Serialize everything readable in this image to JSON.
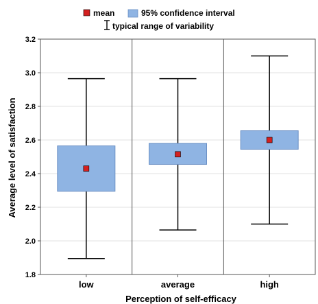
{
  "chart_data": {
    "type": "box",
    "title": "",
    "xlabel": "Perception of self-efficacy",
    "ylabel": "Average level of satisfaction",
    "ylim": [
      1.8,
      3.2
    ],
    "yticks": [
      "1.8",
      "2.0",
      "2.2",
      "2.4",
      "2.6",
      "2.8",
      "3.0",
      "3.2"
    ],
    "categories": [
      "low",
      "average",
      "high"
    ],
    "mean": [
      2.43,
      2.515,
      2.6
    ],
    "ci_low": [
      2.295,
      2.455,
      2.545
    ],
    "ci_high": [
      2.565,
      2.58,
      2.655
    ],
    "range_low": [
      1.895,
      2.065,
      2.1
    ],
    "range_high": [
      2.965,
      2.965,
      3.1
    ],
    "grid": true,
    "legend": {
      "position": "top",
      "items": [
        {
          "label": "mean",
          "marker": "square",
          "color": "#d42020"
        },
        {
          "label": "95% confidence interval",
          "marker": "box",
          "color": "#8fb4e3"
        },
        {
          "label": "typical range of variability",
          "marker": "whisker",
          "color": "#000000"
        }
      ]
    },
    "colors": {
      "mean": "#d42020",
      "ci_fill": "#8fb4e3",
      "ci_stroke": "#6a8fc4",
      "whisker": "#000000",
      "grid": "#e2e2e2"
    }
  }
}
